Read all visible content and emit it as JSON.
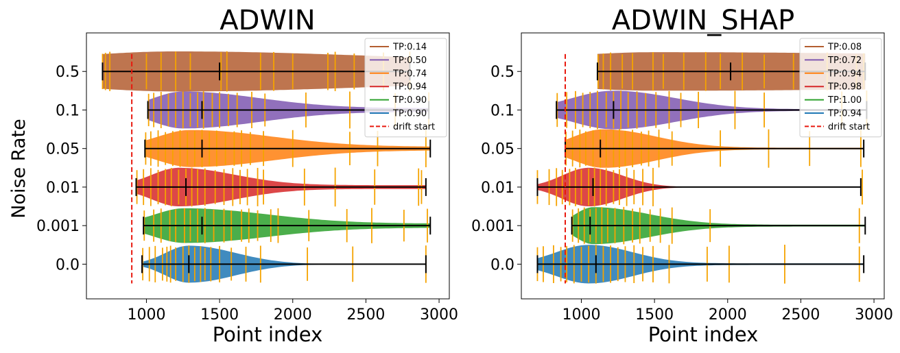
{
  "figure": {
    "ylabel": "Noise Rate"
  },
  "chart_data": [
    {
      "type": "violin",
      "title": "ADWIN",
      "xlabel": "Point index",
      "ylabel": "Noise Rate",
      "xlim": [
        590,
        3070
      ],
      "xticks": [
        1000,
        1500,
        2000,
        2500,
        3000
      ],
      "ylim": [
        -0.9,
        6.0
      ],
      "legend_position": "upper right",
      "drift_start": 900,
      "drift_label": "drift start",
      "series": [
        {
          "label": "0.0",
          "legend": "TP:0.90",
          "color": "#1f77b4",
          "min": 970,
          "median": 1290,
          "max": 2910,
          "peak": 1290,
          "width": 0.48,
          "lower": 160,
          "upper": 320,
          "ticks": [
            975,
            1020,
            1060,
            1110,
            1140,
            1165,
            1200,
            1250,
            1290,
            1330,
            1370,
            1400,
            1440,
            1500,
            1580,
            1680,
            1780,
            2100,
            2410,
            2910
          ]
        },
        {
          "label": "0.001",
          "legend": "TP:0.90",
          "color": "#2ca02c",
          "min": 980,
          "median": 1380,
          "max": 2940,
          "peak": 1260,
          "width": 0.45,
          "lower": 200,
          "upper": 560,
          "tail": 0.12,
          "ticks": [
            985,
            1050,
            1100,
            1160,
            1200,
            1260,
            1300,
            1350,
            1400,
            1460,
            1530,
            1580,
            1650,
            1700,
            1760,
            1850,
            1900,
            2110,
            2370,
            2540,
            2760,
            2920
          ]
        },
        {
          "label": "0.01",
          "legend": "TP:0.94",
          "color": "#d62728",
          "min": 930,
          "median": 1270,
          "max": 2910,
          "peak": 1220,
          "width": 0.5,
          "lower": 180,
          "upper": 380,
          "tail": 0.1,
          "ticks": [
            935,
            980,
            1030,
            1080,
            1130,
            1170,
            1220,
            1270,
            1310,
            1350,
            1400,
            1470,
            1530,
            1590,
            1640,
            1690,
            1760,
            1800,
            2080,
            2290,
            2560,
            2860,
            2880
          ]
        },
        {
          "label": "0.05",
          "legend": "TP:0.74",
          "color": "#ff7f0e",
          "min": 990,
          "median": 1380,
          "max": 2940,
          "peak": 1300,
          "width": 0.48,
          "lower": 220,
          "upper": 560,
          "tail": 0.1,
          "ticks": [
            995,
            1030,
            1080,
            1130,
            1180,
            1230,
            1280,
            1330,
            1380,
            1430,
            1480,
            1540,
            1600,
            1650,
            1710,
            1800,
            2000,
            2390,
            2580,
            2910
          ]
        },
        {
          "label": "0.1",
          "legend": "TP:0.50",
          "color": "#7e57b0",
          "min": 1010,
          "median": 1380,
          "max": 2930,
          "peak": 1250,
          "width": 0.48,
          "lower": 200,
          "upper": 520,
          "tail": 0.1,
          "ticks": [
            1015,
            1050,
            1100,
            1150,
            1200,
            1250,
            1300,
            1350,
            1390,
            1450,
            1500,
            1560,
            1620,
            1720,
            1810,
            2090,
            2390,
            2700,
            2930
          ]
        },
        {
          "label": "0.5",
          "legend": "TP:0.14",
          "color": "#b35d30",
          "min": 700,
          "median": 1500,
          "max": 2800,
          "peak": 1200,
          "width": 0.52,
          "lower": 700,
          "upper": 1400,
          "tail": 0.4,
          "ticks": [
            700,
            720,
            750,
            1000,
            1100,
            1200,
            1300,
            1510,
            1550,
            1780,
            1870,
            2000,
            2240,
            2290,
            2420,
            2620,
            2800
          ]
        }
      ]
    },
    {
      "type": "violin",
      "title": "ADWIN_SHAP",
      "xlabel": "Point index",
      "ylabel": "",
      "xlim": [
        590,
        3070
      ],
      "xticks": [
        1000,
        1500,
        2000,
        2500,
        3000
      ],
      "ylim": [
        -0.9,
        6.0
      ],
      "legend_position": "upper right",
      "drift_start": 890,
      "drift_label": "drift start",
      "series": [
        {
          "label": "0.0",
          "legend": "TP:0.94",
          "color": "#1f77b4",
          "min": 700,
          "median": 1100,
          "max": 2930,
          "peak": 1050,
          "width": 0.5,
          "lower": 220,
          "upper": 300,
          "tail": 0.04,
          "ticks": [
            700,
            740,
            810,
            860,
            900,
            950,
            1000,
            1050,
            1100,
            1150,
            1200,
            1250,
            1300,
            1360,
            1420,
            1490,
            1600,
            1860,
            2010,
            2390,
            2900
          ]
        },
        {
          "label": "0.001",
          "legend": "TP:1.00",
          "color": "#2ca02c",
          "min": 935,
          "median": 1060,
          "max": 2940,
          "peak": 1080,
          "width": 0.48,
          "lower": 120,
          "upper": 380,
          "tail": 0.05,
          "ticks": [
            940,
            980,
            1020,
            1060,
            1100,
            1140,
            1180,
            1230,
            1290,
            1350,
            1400,
            1470,
            1540,
            1620,
            1880,
            2900
          ]
        },
        {
          "label": "0.01",
          "legend": "TP:0.98",
          "color": "#d62728",
          "min": 700,
          "median": 1080,
          "max": 2910,
          "peak": 1050,
          "width": 0.5,
          "lower": 180,
          "upper": 230,
          "ticks": [
            700,
            780,
            830,
            870,
            920,
            960,
            1000,
            1050,
            1090,
            1130,
            1170,
            1220,
            1260,
            1310,
            1360,
            1420,
            1490,
            2920
          ]
        },
        {
          "label": "0.05",
          "legend": "TP:0.94",
          "color": "#ff7f0e",
          "min": 890,
          "median": 1130,
          "max": 2930,
          "peak": 1150,
          "width": 0.5,
          "lower": 200,
          "upper": 360,
          "tail": 0.04,
          "ticks": [
            895,
            940,
            990,
            1030,
            1080,
            1130,
            1170,
            1220,
            1260,
            1300,
            1350,
            1410,
            1460,
            1530,
            1620,
            1950,
            2280,
            2560,
            2910
          ]
        },
        {
          "label": "0.1",
          "legend": "TP:0.72",
          "color": "#7e57b0",
          "min": 830,
          "median": 1220,
          "max": 2950,
          "peak": 1220,
          "width": 0.5,
          "lower": 280,
          "upper": 420,
          "tail": 0.04,
          "ticks": [
            835,
            900,
            960,
            1010,
            1060,
            1110,
            1170,
            1220,
            1270,
            1320,
            1380,
            1440,
            1510,
            1600,
            1680,
            1800,
            2050,
            2250,
            2780,
            2950
          ]
        },
        {
          "label": "0.5",
          "legend": "TP:0.08",
          "color": "#b35d30",
          "min": 1110,
          "median": 2020,
          "max": 2940,
          "peak": 1500,
          "width": 0.5,
          "lower": 420,
          "upper": 1800,
          "tail": 0.75,
          "ticks": [
            1115,
            1150,
            1200,
            1280,
            1350,
            1490,
            1560,
            1700,
            1850,
            1950,
            2100,
            2250,
            2450,
            2680,
            2880,
            2930
          ]
        }
      ]
    }
  ]
}
